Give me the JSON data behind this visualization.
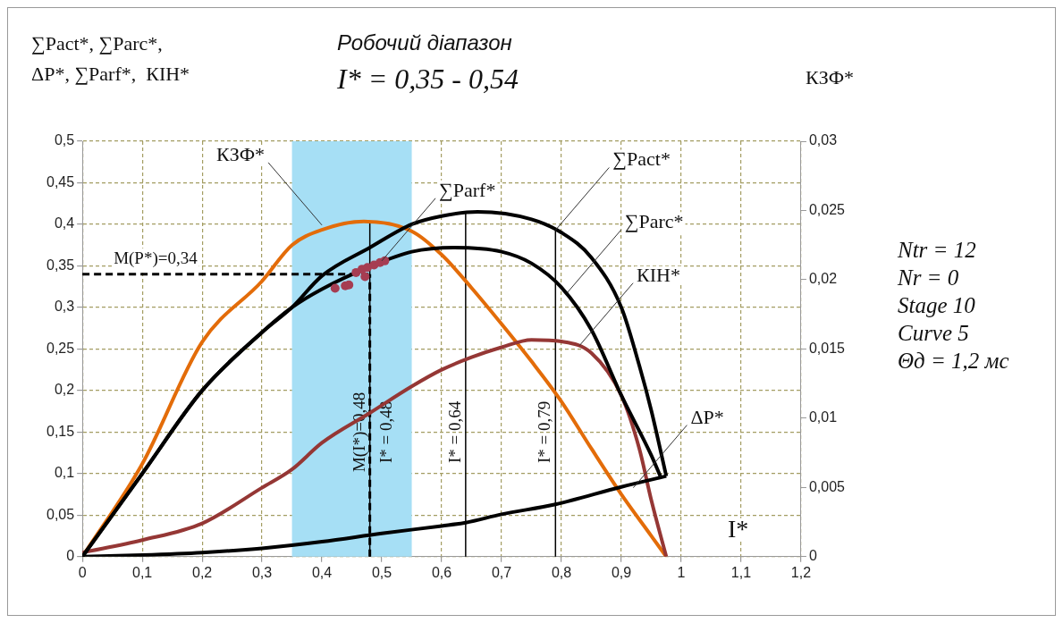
{
  "chart_data": {
    "type": "line",
    "title": "Робочий діапазон",
    "subtitle": "I* = 0,35 - 0,54",
    "ylabel": "∑Pact*, ∑Parc*,\nΔP*, ∑Parf*,  КІН*",
    "y2label": "КЗФ*",
    "xlabel": "I*",
    "xlim": [
      0,
      1.2
    ],
    "xticks": [
      0,
      {
        "value": 0.1,
        "label": "0,1"
      },
      {
        "value": 0.2,
        "label": "0,2"
      },
      {
        "value": 0.3,
        "label": "0,3"
      },
      {
        "value": 0.4,
        "label": "0,4"
      },
      {
        "value": 0.5,
        "label": "0,5"
      },
      {
        "value": 0.6,
        "label": "0,6"
      },
      {
        "value": 0.7,
        "label": "0,7"
      },
      {
        "value": 0.8,
        "label": "0,8"
      },
      {
        "value": 0.9,
        "label": "0,9"
      },
      1,
      {
        "value": 1.1,
        "label": "1,1"
      },
      {
        "value": 1.2,
        "label": "1,2"
      }
    ],
    "ylim": [
      0,
      0.5
    ],
    "yticks": [
      0,
      {
        "value": 0.05,
        "label": "0,05"
      },
      {
        "value": 0.1,
        "label": "0,1"
      },
      {
        "value": 0.15,
        "label": "0,15"
      },
      {
        "value": 0.2,
        "label": "0,2"
      },
      {
        "value": 0.25,
        "label": "0,25"
      },
      {
        "value": 0.3,
        "label": "0,3"
      },
      {
        "value": 0.35,
        "label": "0,35"
      },
      {
        "value": 0.4,
        "label": "0,4"
      },
      {
        "value": 0.45,
        "label": "0,45"
      },
      {
        "value": 0.5,
        "label": "0,5"
      }
    ],
    "y2lim": [
      0,
      0.03
    ],
    "y2ticks": [
      0,
      {
        "value": 0.005,
        "label": "0,005"
      },
      {
        "value": 0.01,
        "label": "0,01"
      },
      {
        "value": 0.015,
        "label": "0,015"
      },
      {
        "value": 0.02,
        "label": "0,02"
      },
      {
        "value": 0.025,
        "label": "0,025"
      },
      {
        "value": 0.03,
        "label": "0,03"
      }
    ],
    "grid": true,
    "legend": false,
    "marker": "none",
    "series": [
      {
        "color": "#000000",
        "x": [
          0,
          0.1,
          0.2,
          0.3,
          0.35,
          0.4,
          0.48,
          0.55,
          0.6,
          0.66,
          0.75,
          0.8,
          0.85,
          0.9,
          0.93,
          0.95,
          0.975
        ],
        "values": [
          0,
          0.1,
          0.2,
          0.27,
          0.3,
          0.338,
          0.372,
          0.4,
          0.41,
          0.415,
          0.406,
          0.39,
          0.36,
          0.3,
          0.23,
          0.176,
          0.097
        ]
      },
      {
        "color": "#000000",
        "x": [
          0,
          0.1,
          0.2,
          0.3,
          0.35,
          0.4,
          0.48,
          0.55,
          0.62,
          0.7,
          0.75,
          0.8,
          0.85,
          0.9,
          0.95,
          0.965
        ],
        "values": [
          0,
          0.1,
          0.2,
          0.27,
          0.3,
          0.322,
          0.349,
          0.367,
          0.372,
          0.367,
          0.353,
          0.324,
          0.273,
          0.194,
          0.122,
          0.097
        ]
      },
      {
        "color": "#000000",
        "x": [
          0,
          0.1,
          0.2,
          0.3,
          0.4,
          0.5,
          0.6,
          0.64,
          0.7,
          0.79,
          0.9,
          0.975
        ],
        "values": [
          0,
          0.002,
          0.005,
          0.01,
          0.018,
          0.028,
          0.037,
          0.041,
          0.051,
          0.063,
          0.084,
          0.097
        ]
      },
      {
        "color": "#953735",
        "x": [
          0,
          0.1,
          0.2,
          0.3,
          0.35,
          0.4,
          0.48,
          0.55,
          0.6,
          0.65,
          0.7,
          0.75,
          0.8,
          0.85,
          0.9,
          0.93,
          0.95,
          0.975
        ],
        "values": [
          0.005,
          0.02,
          0.04,
          0.083,
          0.105,
          0.137,
          0.173,
          0.205,
          0.225,
          0.24,
          0.252,
          0.261,
          0.259,
          0.245,
          0.194,
          0.13,
          0.068,
          0
        ]
      },
      {
        "color": "#e36c09",
        "axis": "y2",
        "x": [
          0,
          0.1,
          0.2,
          0.3,
          0.35,
          0.4,
          0.47,
          0.55,
          0.6,
          0.65,
          0.7,
          0.75,
          0.8,
          0.85,
          0.9,
          0.95,
          0.975
        ],
        "values": [
          0,
          0.0067,
          0.0155,
          0.0199,
          0.0225,
          0.0236,
          0.0242,
          0.0235,
          0.0218,
          0.0194,
          0.0168,
          0.0141,
          0.0112,
          0.0078,
          0.0045,
          0.0015,
          0
        ]
      },
      {
        "type": "scatter",
        "marker": "circle",
        "color": "#a63d52",
        "x": [
          0.422,
          0.439,
          0.445,
          0.457,
          0.467,
          0.472,
          0.476,
          0.487,
          0.497,
          0.505
        ],
        "values": [
          0.323,
          0.326,
          0.327,
          0.342,
          0.346,
          0.337,
          0.348,
          0.351,
          0.354,
          0.356
        ]
      }
    ],
    "bands": [
      {
        "axis": "x",
        "from": 0.35,
        "to": 0.55,
        "color": "#a6dff5"
      }
    ],
    "ref_lines": [
      {
        "axis": "x",
        "value": 0.48,
        "label": "M(I*)=0,48",
        "line_style": "dashed",
        "color": "#000000"
      },
      {
        "axis": "x",
        "value": 0.48,
        "label": "I* = 0,48",
        "color": "#000000"
      },
      {
        "axis": "x",
        "value": 0.64,
        "label": "I* = 0,64",
        "color": "#000000"
      },
      {
        "axis": "x",
        "value": 0.79,
        "label": "I* = 0,79",
        "color": "#000000"
      },
      {
        "axis": "y",
        "value": 0.34,
        "label": "M(P*)=0,34",
        "line_style": "dashed",
        "color": "#000000"
      }
    ],
    "annotations": [
      {
        "text": "КЗФ*",
        "x": 0.4,
        "y": 0.399
      },
      {
        "text": "∑Parf*",
        "x": 0.5,
        "y": 0.356
      },
      {
        "text": "∑Pact*",
        "x": 0.79,
        "y": 0.393
      },
      {
        "text": "∑Parc*",
        "x": 0.81,
        "y": 0.318
      },
      {
        "text": "КІН*",
        "x": 0.83,
        "y": 0.254
      },
      {
        "text": "ΔP*",
        "x": 0.92,
        "y": 0.083
      },
      "Ntr = 12",
      "Nr = 0",
      "Stage 10",
      "Curve 5",
      "Θд = 1,2 мс"
    ]
  }
}
